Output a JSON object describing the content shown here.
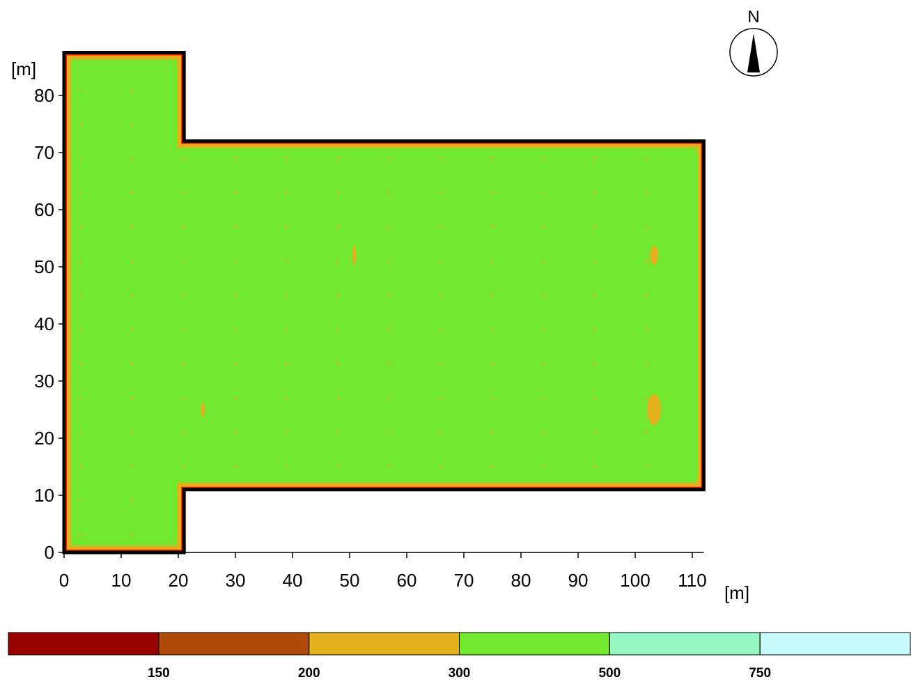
{
  "chart_data": {
    "type": "contour",
    "x_label": "[m]",
    "y_label": "[m]",
    "xlim": [
      0,
      112
    ],
    "ylim": [
      0,
      88
    ],
    "xticks": [
      0,
      10,
      20,
      30,
      40,
      50,
      60,
      70,
      80,
      90,
      100,
      110
    ],
    "yticks": [
      0,
      10,
      20,
      30,
      40,
      50,
      60,
      70,
      80
    ],
    "outline": {
      "x": [
        0,
        21,
        21,
        112,
        112,
        21,
        21,
        0
      ],
      "y": [
        87.5,
        87.5,
        72,
        72,
        11,
        11,
        0,
        0
      ]
    },
    "compass": "N",
    "colorbar": {
      "colors": [
        "#990000",
        "#b04a0a",
        "#e3b01e",
        "#72e830",
        "#96f7c4",
        "#c8fcfc"
      ],
      "boundaries": [
        150,
        200,
        300,
        500,
        750
      ]
    }
  }
}
